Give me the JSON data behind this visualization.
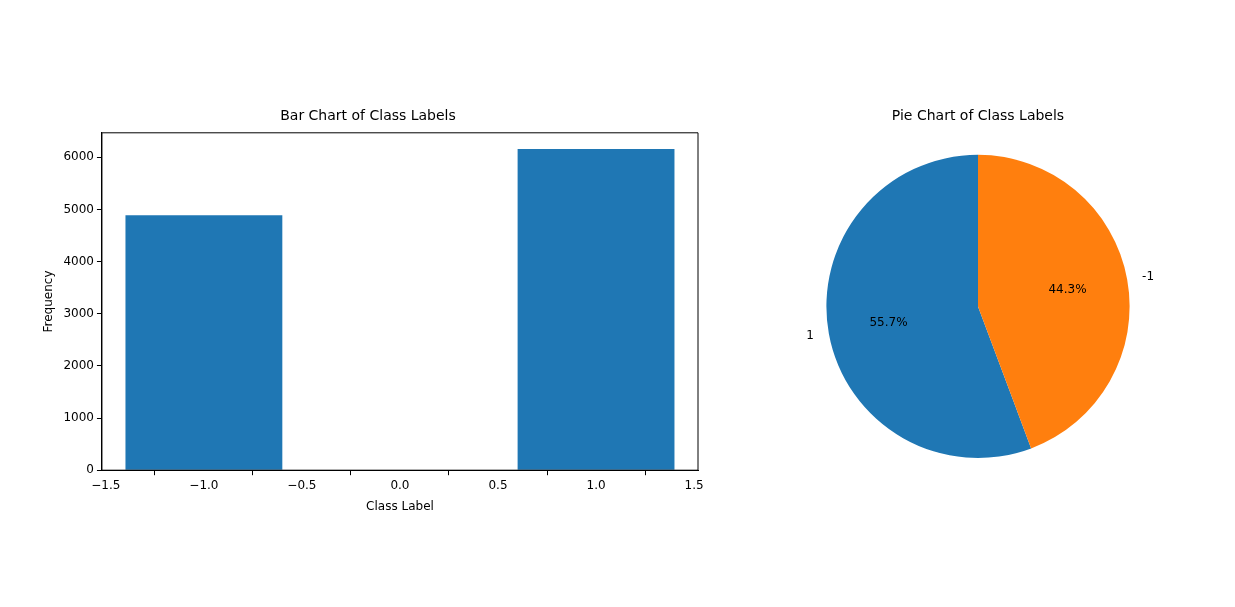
{
  "chart_data": [
    {
      "type": "bar",
      "title": "Bar Chart of Class Labels",
      "xlabel": "Class Label",
      "ylabel": "Frequency",
      "x": [
        -1,
        1
      ],
      "values": [
        4890,
        6160
      ],
      "color": "#1f77b4",
      "xlim": [
        -1.52,
        1.52
      ],
      "xticks": [
        {
          "value": -1.5,
          "label": "−1.5"
        },
        {
          "value": -1,
          "label": "−1.0"
        },
        {
          "value": -0.5,
          "label": "−0.5"
        },
        {
          "value": 0,
          "label": "0.0"
        },
        {
          "value": 0.5,
          "label": "0.5"
        },
        {
          "value": 1,
          "label": "1.0"
        },
        {
          "value": 1.5,
          "label": "1.5"
        }
      ],
      "ylim": [
        0,
        6470
      ],
      "yticks": [
        0,
        1000,
        2000,
        3000,
        4000,
        5000,
        6000
      ],
      "grid": false,
      "legend": false
    },
    {
      "type": "pie",
      "title": "Pie Chart of Class Labels",
      "categories": [
        "1",
        "-1"
      ],
      "values": [
        55.7,
        44.3
      ],
      "colors": [
        "#1f77b4",
        "#ff7f0e"
      ],
      "value_labels": [
        "55.7%",
        "44.3%"
      ],
      "legend": false
    }
  ]
}
